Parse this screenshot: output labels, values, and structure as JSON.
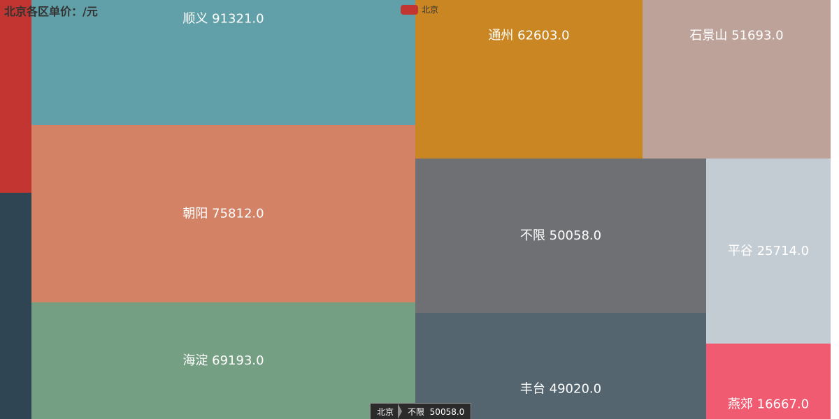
{
  "title": "北京各区单价：/元",
  "legend": {
    "label": "北京",
    "color": "#c23531"
  },
  "breadcrumb": {
    "root": "北京",
    "current": "不限",
    "current_value": "50058.0"
  },
  "chart_data": {
    "type": "treemap",
    "title": "北京各区单价：/元",
    "root": "北京",
    "items": [
      {
        "name": "顺义",
        "value": 91321.0,
        "label": "91321.0",
        "color": "#61a0a8"
      },
      {
        "name": "朝阳",
        "value": 75812.0,
        "label": "75812.0",
        "color": "#d48265"
      },
      {
        "name": "海淀",
        "value": 69193.0,
        "label": "69193.0",
        "color": "#749f83"
      },
      {
        "name": "通州",
        "value": 62603.0,
        "label": "62603.0",
        "color": "#ca8622"
      },
      {
        "name": "石景山",
        "value": 51693.0,
        "label": "51693.0",
        "color": "#bda29a"
      },
      {
        "name": "不限",
        "value": 50058.0,
        "label": "50058.0",
        "color": "#6e7074"
      },
      {
        "name": "丰台",
        "value": 49020.0,
        "label": "49020.0",
        "color": "#546570"
      },
      {
        "name": "平谷",
        "value": 25714.0,
        "label": "25714.0",
        "color": "#c4ccd3"
      },
      {
        "name": "燕郊",
        "value": 16667.0,
        "label": "16667.0",
        "color": "#f05b72"
      }
    ],
    "unlabeled_tiles": [
      {
        "color": "#c23531"
      },
      {
        "color": "#2f4554"
      }
    ]
  }
}
